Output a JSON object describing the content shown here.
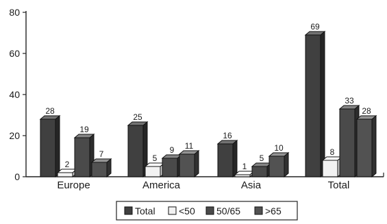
{
  "chart_data": {
    "type": "bar",
    "categories": [
      "Europe",
      "America",
      "Asia",
      "Total"
    ],
    "series": [
      {
        "name": "Total",
        "values": [
          28,
          25,
          16,
          69
        ]
      },
      {
        "name": "<50",
        "values": [
          2,
          5,
          1,
          8
        ]
      },
      {
        "name": "50/65",
        "values": [
          19,
          9,
          5,
          33
        ]
      },
      {
        "name": ">65",
        "values": [
          7,
          11,
          10,
          28
        ]
      }
    ],
    "yticks": [
      "0",
      "20",
      "40",
      "60",
      "80"
    ],
    "ylim": [
      0,
      80
    ],
    "grid": false,
    "legend_position": "bottom-center",
    "colors": {
      "Total": "#404040",
      "<50": "#f2f2f2",
      "50/65": "#4a4a4a",
      ">65": "#525252"
    }
  }
}
